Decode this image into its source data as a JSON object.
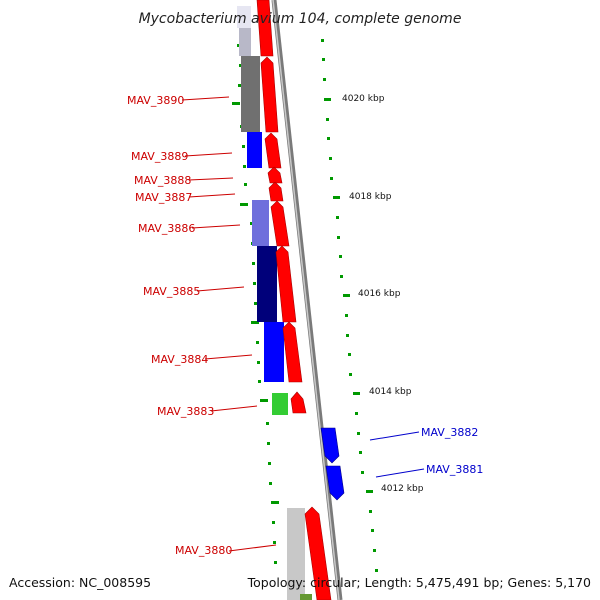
{
  "title": "Mycobacterium avium 104, complete genome",
  "footer": {
    "accession": "Accession: NC_008595",
    "summary": "Topology: circular; Length: 5,475,491 bp; Genes: 5,170"
  },
  "scale_ticks": [
    "4020 kbp",
    "4018 kbp",
    "4016 kbp",
    "4014 kbp",
    "4012 kbp"
  ],
  "gene_labels_left": [
    "MAV_3890",
    "MAV_3889",
    "MAV_3888",
    "MAV_3887",
    "MAV_3886",
    "MAV_3885",
    "MAV_3884",
    "MAV_3883",
    "MAV_3880"
  ],
  "gene_labels_right": [
    "MAV_3882",
    "MAV_3881"
  ],
  "colors": {
    "forward_gene": "#ff0000",
    "reverse_gene": "#0000ff",
    "label_left": "#cc0000",
    "label_right": "#0000cc",
    "tick": "#008800",
    "backbone": "#888888"
  }
}
